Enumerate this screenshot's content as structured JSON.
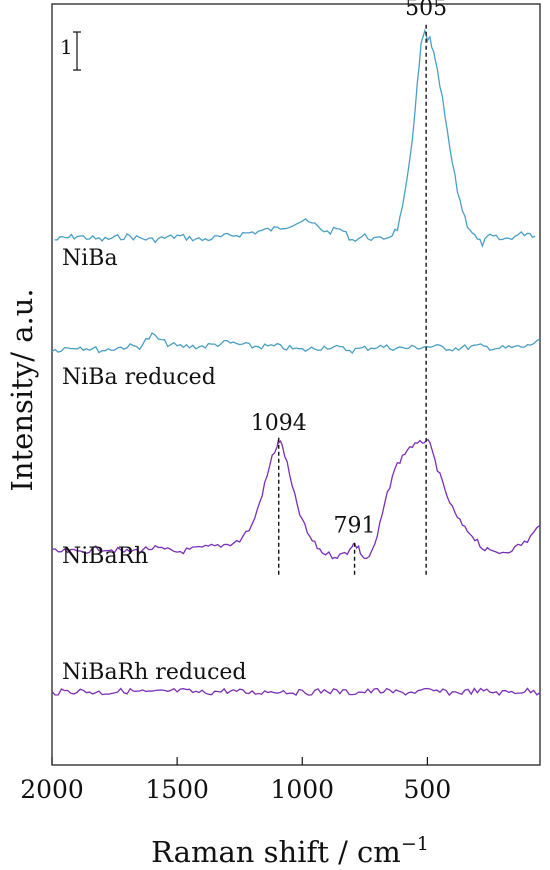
{
  "chart_data": {
    "type": "line",
    "xlabel": "Raman shift / cm",
    "xlabel_sup": "−1",
    "ylabel": "Intensity/ a.u.",
    "x_reversed": true,
    "xlim": [
      2000,
      50
    ],
    "xticks": [
      2000,
      1500,
      1000,
      500
    ],
    "xtick_labels": [
      "2000",
      "1500",
      "1000",
      "500"
    ],
    "ylim": [
      0,
      20
    ],
    "scale_bar": {
      "label": "1",
      "value": 1
    },
    "series": [
      {
        "name": "NiBa",
        "color": "#4a9fc4",
        "x": [
          1990,
          1900,
          1800,
          1700,
          1600,
          1500,
          1400,
          1300,
          1200,
          1100,
          1050,
          1000,
          950,
          900,
          850,
          800,
          750,
          700,
          650,
          620,
          600,
          580,
          560,
          540,
          525,
          510,
          500,
          490,
          475,
          460,
          440,
          420,
          400,
          380,
          360,
          340,
          320,
          300,
          280,
          250,
          200,
          150,
          100,
          70
        ],
        "y": [
          13.8,
          13.9,
          13.8,
          13.9,
          13.8,
          13.9,
          13.8,
          13.9,
          14.0,
          14.1,
          14.2,
          14.3,
          14.2,
          14.0,
          14.1,
          13.8,
          13.9,
          13.8,
          13.9,
          14.1,
          14.6,
          15.4,
          16.5,
          17.9,
          18.9,
          19.3,
          19.0,
          19.1,
          18.7,
          18.2,
          17.5,
          16.6,
          15.8,
          15.1,
          14.6,
          14.2,
          14.0,
          13.8,
          13.7,
          13.9,
          13.8,
          13.9,
          14.0,
          13.9
        ]
      },
      {
        "name": "NiBa reduced",
        "color": "#4a9fc4",
        "x": [
          2000,
          1900,
          1800,
          1700,
          1650,
          1600,
          1550,
          1500,
          1400,
          1300,
          1200,
          1100,
          1000,
          900,
          800,
          700,
          600,
          500,
          400,
          300,
          200,
          100,
          50
        ],
        "y": [
          10.9,
          11.0,
          10.9,
          11.0,
          11.0,
          11.3,
          11.1,
          11.0,
          11.0,
          11.1,
          11.0,
          11.0,
          10.9,
          11.0,
          10.9,
          11.0,
          10.95,
          11.0,
          10.95,
          11.0,
          10.95,
          11.0,
          11.2
        ]
      },
      {
        "name": "NiBaRh",
        "color": "#7a2fb5",
        "x": [
          2000,
          1900,
          1800,
          1700,
          1600,
          1500,
          1400,
          1300,
          1250,
          1200,
          1170,
          1140,
          1120,
          1100,
          1094,
          1080,
          1060,
          1040,
          1010,
          980,
          950,
          920,
          880,
          850,
          820,
          800,
          791,
          775,
          760,
          745,
          720,
          700,
          680,
          660,
          640,
          620,
          600,
          580,
          560,
          540,
          520,
          505,
          490,
          470,
          450,
          430,
          410,
          390,
          370,
          350,
          330,
          300,
          280,
          250,
          200,
          150,
          100,
          50
        ],
        "y": [
          5.6,
          5.6,
          5.7,
          5.6,
          5.7,
          5.6,
          5.7,
          5.8,
          5.9,
          6.3,
          6.9,
          7.6,
          8.1,
          8.4,
          8.5,
          8.4,
          7.9,
          7.3,
          6.6,
          6.1,
          5.8,
          5.6,
          5.5,
          5.5,
          5.6,
          5.8,
          5.8,
          5.7,
          5.5,
          5.4,
          5.6,
          6.0,
          6.6,
          7.1,
          7.6,
          7.9,
          8.1,
          8.3,
          8.4,
          8.4,
          8.5,
          8.55,
          8.4,
          8.0,
          7.6,
          7.2,
          6.9,
          6.6,
          6.4,
          6.2,
          6.1,
          5.9,
          5.7,
          5.6,
          5.6,
          5.7,
          5.9,
          6.3
        ]
      },
      {
        "name": "NiBaRh reduced",
        "color": "#7a2fb5",
        "x": [
          2000,
          1900,
          1800,
          1700,
          1600,
          1500,
          1400,
          1300,
          1200,
          1100,
          1000,
          900,
          800,
          700,
          600,
          500,
          400,
          300,
          200,
          100,
          50
        ],
        "y": [
          1.9,
          1.95,
          1.9,
          1.95,
          1.9,
          1.95,
          1.9,
          1.95,
          1.9,
          1.95,
          1.9,
          1.95,
          1.9,
          1.95,
          1.9,
          1.95,
          1.9,
          1.95,
          1.9,
          1.95,
          1.9
        ]
      }
    ],
    "annotations": [
      {
        "label": "505",
        "x": 505,
        "y_bottom": 5.0,
        "y_top": 19.5
      },
      {
        "label": "1094",
        "x": 1094,
        "y_bottom": 5.0,
        "y_top": 8.6
      },
      {
        "label": "791",
        "x": 791,
        "y_bottom": 5.0,
        "y_top": 5.9
      }
    ]
  }
}
